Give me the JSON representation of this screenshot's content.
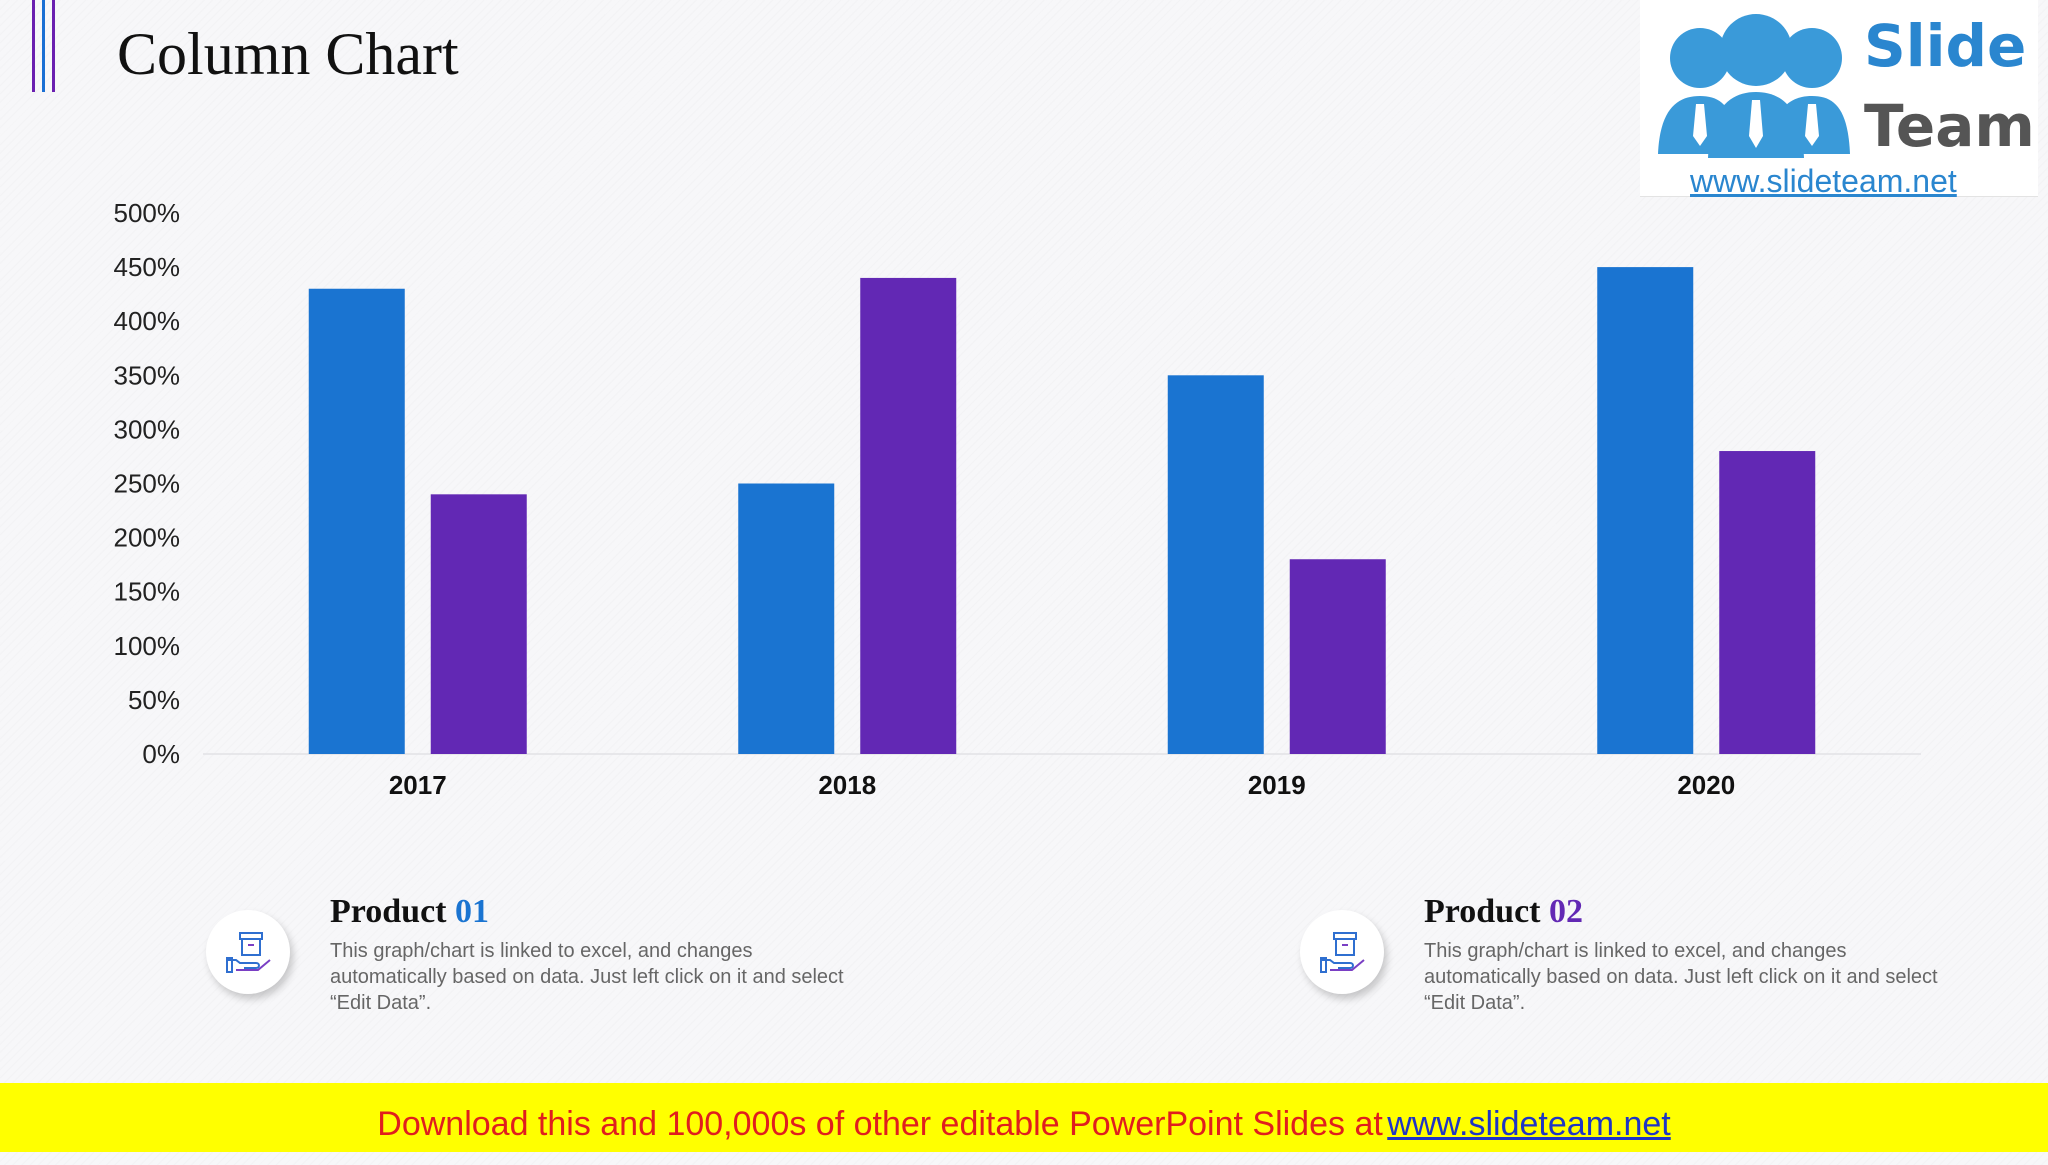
{
  "page": {
    "title": "Column Chart"
  },
  "colors": {
    "accent_lines": [
      "#6a1fb0",
      "#1a6fd4",
      "#6a1fb0"
    ],
    "series_1": "#1a74d1",
    "series_2": "#6228b4",
    "footer_background": "#ffff00",
    "footer_text": "#e01e1e",
    "footer_link": "#1f35c5",
    "logo_people": "#3a9ad9",
    "logo_text": "#2a86cf",
    "logo_team_text": "#555555"
  },
  "logo": {
    "word1": "Slide",
    "word2": "Team",
    "url": "www.slideteam.net"
  },
  "chart_data": {
    "type": "bar",
    "title": "",
    "xlabel": "",
    "ylabel": "",
    "categories": [
      "2017",
      "2018",
      "2019",
      "2020"
    ],
    "series": [
      {
        "name": "Product 01",
        "values": [
          430,
          250,
          350,
          450
        ]
      },
      {
        "name": "Product 02",
        "values": [
          240,
          440,
          180,
          280
        ]
      }
    ],
    "ylim": [
      0,
      500
    ],
    "y_ticks": [
      0,
      50,
      100,
      150,
      200,
      250,
      300,
      350,
      400,
      450,
      500
    ],
    "y_tick_suffix": "%",
    "grid": false,
    "legend": "bottom"
  },
  "legend": [
    {
      "label_word": "Product",
      "label_number": "01",
      "description": "This graph/chart is linked to excel, and changes automatically based on data. Just left click on it and select “Edit Data”.",
      "icon": "box-in-hand-icon"
    },
    {
      "label_word": "Product",
      "label_number": "02",
      "description": "This graph/chart is linked to excel, and changes automatically based on data. Just left click on it and select “Edit Data”.",
      "icon": "box-in-hand-icon"
    }
  ],
  "footer": {
    "text": "Download this and 100,000s of other editable PowerPoint Slides at",
    "link": "www.slideteam.net"
  }
}
